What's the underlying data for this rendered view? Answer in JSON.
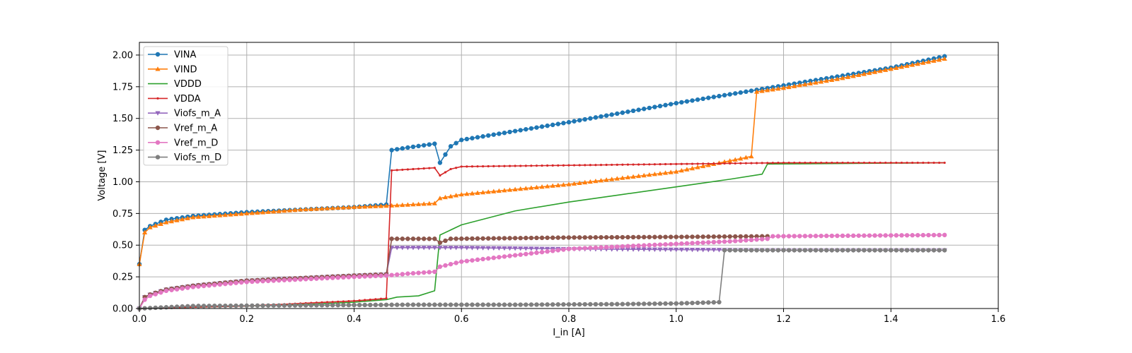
{
  "chart_data": {
    "type": "line",
    "title": "",
    "xlabel": "I_in [A]",
    "ylabel": "Voltage [V]",
    "xlim": [
      0,
      1.6
    ],
    "ylim": [
      0,
      2.1
    ],
    "xticks": [
      0,
      0.2,
      0.4,
      0.6,
      0.8,
      1.0,
      1.2,
      1.4,
      1.6
    ],
    "yticks": [
      0,
      0.25,
      0.5,
      0.75,
      1.0,
      1.25,
      1.5,
      1.75,
      2.0
    ],
    "xtick_labels": [
      "0.0",
      "0.2",
      "0.4",
      "0.6",
      "0.8",
      "1.0",
      "1.2",
      "1.4",
      "1.6"
    ],
    "ytick_labels": [
      "0.00",
      "0.25",
      "0.50",
      "0.75",
      "1.00",
      "1.25",
      "1.50",
      "1.75",
      "2.00"
    ],
    "grid": true,
    "legend_position": "top-left",
    "series": [
      {
        "name": "VINA",
        "color": "#1f77b4",
        "marker": "circle",
        "points": [
          [
            0,
            0.35
          ],
          [
            0.01,
            0.62
          ],
          [
            0.02,
            0.65
          ],
          [
            0.05,
            0.7
          ],
          [
            0.1,
            0.73
          ],
          [
            0.2,
            0.76
          ],
          [
            0.3,
            0.78
          ],
          [
            0.4,
            0.8
          ],
          [
            0.46,
            0.82
          ],
          [
            0.47,
            1.25
          ],
          [
            0.5,
            1.27
          ],
          [
            0.55,
            1.3
          ],
          [
            0.56,
            1.15
          ],
          [
            0.58,
            1.28
          ],
          [
            0.6,
            1.33
          ],
          [
            0.8,
            1.47
          ],
          [
            1.0,
            1.62
          ],
          [
            1.2,
            1.76
          ],
          [
            1.4,
            1.9
          ],
          [
            1.5,
            1.99
          ]
        ]
      },
      {
        "name": "VIND",
        "color": "#ff7f0e",
        "marker": "triangle-up",
        "points": [
          [
            0,
            0.35
          ],
          [
            0.01,
            0.6
          ],
          [
            0.02,
            0.64
          ],
          [
            0.05,
            0.68
          ],
          [
            0.1,
            0.72
          ],
          [
            0.2,
            0.75
          ],
          [
            0.3,
            0.78
          ],
          [
            0.4,
            0.8
          ],
          [
            0.46,
            0.81
          ],
          [
            0.55,
            0.83
          ],
          [
            0.56,
            0.87
          ],
          [
            0.6,
            0.9
          ],
          [
            0.8,
            0.98
          ],
          [
            1.0,
            1.08
          ],
          [
            1.14,
            1.2
          ],
          [
            1.15,
            1.71
          ],
          [
            1.2,
            1.74
          ],
          [
            1.3,
            1.81
          ],
          [
            1.4,
            1.89
          ],
          [
            1.5,
            1.97
          ]
        ]
      },
      {
        "name": "VDDD",
        "color": "#2ca02c",
        "marker": "none",
        "points": [
          [
            0,
            0.0
          ],
          [
            0.1,
            0.01
          ],
          [
            0.2,
            0.02
          ],
          [
            0.3,
            0.03
          ],
          [
            0.4,
            0.05
          ],
          [
            0.46,
            0.07
          ],
          [
            0.48,
            0.09
          ],
          [
            0.52,
            0.1
          ],
          [
            0.55,
            0.14
          ],
          [
            0.56,
            0.58
          ],
          [
            0.6,
            0.66
          ],
          [
            0.7,
            0.77
          ],
          [
            0.8,
            0.84
          ],
          [
            0.9,
            0.9
          ],
          [
            1.0,
            0.96
          ],
          [
            1.1,
            1.02
          ],
          [
            1.16,
            1.06
          ],
          [
            1.17,
            1.14
          ],
          [
            1.5,
            1.15
          ]
        ]
      },
      {
        "name": "VDDA",
        "color": "#d62728",
        "marker": "point",
        "points": [
          [
            0,
            0.0
          ],
          [
            0.1,
            0.01
          ],
          [
            0.2,
            0.02
          ],
          [
            0.3,
            0.04
          ],
          [
            0.4,
            0.06
          ],
          [
            0.46,
            0.08
          ],
          [
            0.47,
            1.09
          ],
          [
            0.55,
            1.11
          ],
          [
            0.56,
            1.05
          ],
          [
            0.58,
            1.1
          ],
          [
            0.6,
            1.12
          ],
          [
            0.8,
            1.13
          ],
          [
            1.0,
            1.14
          ],
          [
            1.2,
            1.15
          ],
          [
            1.5,
            1.15
          ]
        ]
      },
      {
        "name": "Viofs_m_A",
        "color": "#9467bd",
        "marker": "triangle-down",
        "points": [
          [
            0,
            0.0
          ],
          [
            0.01,
            0.09
          ],
          [
            0.02,
            0.11
          ],
          [
            0.05,
            0.15
          ],
          [
            0.1,
            0.18
          ],
          [
            0.2,
            0.22
          ],
          [
            0.3,
            0.24
          ],
          [
            0.4,
            0.26
          ],
          [
            0.46,
            0.27
          ],
          [
            0.47,
            0.48
          ],
          [
            0.6,
            0.48
          ],
          [
            0.8,
            0.47
          ],
          [
            1.0,
            0.465
          ],
          [
            1.2,
            0.46
          ],
          [
            1.5,
            0.46
          ]
        ]
      },
      {
        "name": "Vref_m_A",
        "color": "#8c564b",
        "marker": "circle",
        "points": [
          [
            0,
            0.0
          ],
          [
            0.01,
            0.09
          ],
          [
            0.02,
            0.11
          ],
          [
            0.05,
            0.15
          ],
          [
            0.1,
            0.18
          ],
          [
            0.2,
            0.22
          ],
          [
            0.3,
            0.24
          ],
          [
            0.4,
            0.26
          ],
          [
            0.46,
            0.27
          ],
          [
            0.47,
            0.55
          ],
          [
            0.55,
            0.55
          ],
          [
            0.56,
            0.52
          ],
          [
            0.58,
            0.55
          ],
          [
            0.8,
            0.56
          ],
          [
            1.0,
            0.565
          ],
          [
            1.17,
            0.57
          ]
        ]
      },
      {
        "name": "Vref_m_D",
        "color": "#e377c2",
        "marker": "circle",
        "points": [
          [
            0,
            0.0
          ],
          [
            0.01,
            0.07
          ],
          [
            0.02,
            0.1
          ],
          [
            0.05,
            0.14
          ],
          [
            0.1,
            0.17
          ],
          [
            0.2,
            0.21
          ],
          [
            0.3,
            0.23
          ],
          [
            0.4,
            0.25
          ],
          [
            0.46,
            0.26
          ],
          [
            0.5,
            0.275
          ],
          [
            0.55,
            0.29
          ],
          [
            0.56,
            0.33
          ],
          [
            0.6,
            0.37
          ],
          [
            0.7,
            0.42
          ],
          [
            0.8,
            0.47
          ],
          [
            0.9,
            0.49
          ],
          [
            1.0,
            0.51
          ],
          [
            1.1,
            0.53
          ],
          [
            1.17,
            0.55
          ],
          [
            1.18,
            0.57
          ],
          [
            1.5,
            0.58
          ]
        ]
      },
      {
        "name": "Viofs_m_D",
        "color": "#7f7f7f",
        "marker": "circle",
        "points": [
          [
            0,
            0.0
          ],
          [
            0.1,
            0.02
          ],
          [
            0.3,
            0.025
          ],
          [
            0.5,
            0.03
          ],
          [
            0.7,
            0.03
          ],
          [
            0.9,
            0.035
          ],
          [
            1.0,
            0.04
          ],
          [
            1.08,
            0.05
          ],
          [
            1.09,
            0.46
          ],
          [
            1.2,
            0.46
          ],
          [
            1.5,
            0.46
          ]
        ]
      }
    ]
  }
}
